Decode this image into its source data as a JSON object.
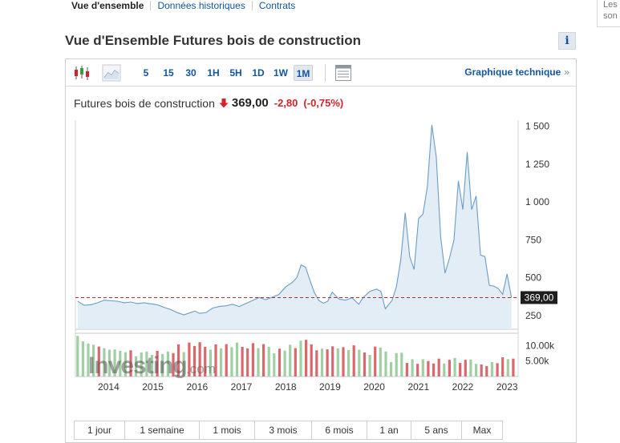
{
  "nav": {
    "tabs": [
      "Vue d'ensemble",
      "Données historiques",
      "Contrats"
    ]
  },
  "side_panel": {
    "line1": "Les",
    "line2": "son"
  },
  "page": {
    "title": "Vue d'Ensemble Futures bois de construction",
    "info_label": "i"
  },
  "toolbar": {
    "timeframes": [
      "5",
      "15",
      "30",
      "1H",
      "5H",
      "1D",
      "1W",
      "1M"
    ],
    "active_timeframe": "1M",
    "technical_chart_label": "Graphique technique",
    "technical_chart_arrow": "»"
  },
  "quote": {
    "name": "Futures bois de construction",
    "price": "369,00",
    "change": "-2,80",
    "change_pct": "(-0,75%)"
  },
  "periods": [
    "1 jour",
    "1 semaine",
    "1 mois",
    "3 mois",
    "6 mois",
    "1 an",
    "5 ans",
    "Max"
  ],
  "watermark": {
    "brand": "Investing",
    "suffix": ".com"
  },
  "colors": {
    "link": "#1256a0",
    "down": "#d4232c",
    "line": "#6a9cc6",
    "area": "#deeaf4",
    "vol_up": "#9fd0a3",
    "vol_down": "#d9676b"
  },
  "chart_data": {
    "type": "area",
    "title": "Futures bois de construction",
    "x_ticks": [
      "2014",
      "2015",
      "2016",
      "2017",
      "2018",
      "2019",
      "2020",
      "2021",
      "2022",
      "2023"
    ],
    "y_ticks": [
      "1 500",
      "1 250",
      "1 000",
      "750",
      "500",
      "250"
    ],
    "y_tick_values": [
      1500,
      1250,
      1000,
      750,
      500,
      250
    ],
    "ylim": [
      160,
      1530
    ],
    "x_range": [
      2013.25,
      2023.25
    ],
    "current_value": 369,
    "current_label": "369,00",
    "price_series": [
      [
        2013.3,
        345
      ],
      [
        2013.45,
        318
      ],
      [
        2013.6,
        322
      ],
      [
        2013.75,
        335
      ],
      [
        2013.9,
        352
      ],
      [
        2014.05,
        348
      ],
      [
        2014.2,
        345
      ],
      [
        2014.35,
        335
      ],
      [
        2014.5,
        340
      ],
      [
        2014.65,
        330
      ],
      [
        2014.8,
        335
      ],
      [
        2014.95,
        328
      ],
      [
        2015.1,
        322
      ],
      [
        2015.25,
        305
      ],
      [
        2015.4,
        290
      ],
      [
        2015.55,
        270
      ],
      [
        2015.7,
        255
      ],
      [
        2015.85,
        270
      ],
      [
        2015.95,
        280
      ],
      [
        2016.05,
        265
      ],
      [
        2016.2,
        270
      ],
      [
        2016.35,
        300
      ],
      [
        2016.5,
        310
      ],
      [
        2016.65,
        315
      ],
      [
        2016.8,
        325
      ],
      [
        2016.95,
        310
      ],
      [
        2017.1,
        330
      ],
      [
        2017.25,
        350
      ],
      [
        2017.4,
        370
      ],
      [
        2017.55,
        355
      ],
      [
        2017.7,
        372
      ],
      [
        2017.85,
        390
      ],
      [
        2018.0,
        440
      ],
      [
        2018.15,
        470
      ],
      [
        2018.25,
        500
      ],
      [
        2018.35,
        585
      ],
      [
        2018.45,
        570
      ],
      [
        2018.55,
        480
      ],
      [
        2018.65,
        400
      ],
      [
        2018.75,
        350
      ],
      [
        2018.85,
        332
      ],
      [
        2018.95,
        345
      ],
      [
        2019.05,
        405
      ],
      [
        2019.2,
        360
      ],
      [
        2019.35,
        352
      ],
      [
        2019.5,
        368
      ],
      [
        2019.65,
        325
      ],
      [
        2019.75,
        370
      ],
      [
        2019.9,
        410
      ],
      [
        2020.05,
        425
      ],
      [
        2020.15,
        410
      ],
      [
        2020.25,
        295
      ],
      [
        2020.4,
        350
      ],
      [
        2020.5,
        440
      ],
      [
        2020.6,
        620
      ],
      [
        2020.7,
        930
      ],
      [
        2020.8,
        640
      ],
      [
        2020.9,
        555
      ],
      [
        2021.0,
        890
      ],
      [
        2021.1,
        920
      ],
      [
        2021.2,
        1100
      ],
      [
        2021.3,
        1510
      ],
      [
        2021.4,
        1300
      ],
      [
        2021.5,
        770
      ],
      [
        2021.6,
        530
      ],
      [
        2021.7,
        630
      ],
      [
        2021.8,
        750
      ],
      [
        2021.9,
        1140
      ],
      [
        2022.0,
        950
      ],
      [
        2022.1,
        1330
      ],
      [
        2022.2,
        950
      ],
      [
        2022.3,
        1040
      ],
      [
        2022.4,
        650
      ],
      [
        2022.5,
        640
      ],
      [
        2022.6,
        450
      ],
      [
        2022.7,
        445
      ],
      [
        2022.8,
        430
      ],
      [
        2022.9,
        390
      ],
      [
        2023.0,
        525
      ],
      [
        2023.1,
        369
      ]
    ],
    "volume_unit_ticks": [
      "10.00k",
      "5.00k"
    ],
    "volume_tick_values": [
      10000,
      5000
    ],
    "volume_max": 13500,
    "volume_bars": [
      [
        2013.3,
        13200,
        "up"
      ],
      [
        2013.42,
        11400,
        "up"
      ],
      [
        2013.54,
        10700,
        "up"
      ],
      [
        2013.66,
        10300,
        "up"
      ],
      [
        2013.78,
        9700,
        "down"
      ],
      [
        2013.9,
        9200,
        "up"
      ],
      [
        2014.02,
        8700,
        "up"
      ],
      [
        2014.14,
        8800,
        "up"
      ],
      [
        2014.26,
        8300,
        "up"
      ],
      [
        2014.38,
        7900,
        "up"
      ],
      [
        2014.5,
        8500,
        "down"
      ],
      [
        2014.62,
        6500,
        "up"
      ],
      [
        2014.74,
        7800,
        "up"
      ],
      [
        2014.86,
        8100,
        "up"
      ],
      [
        2014.98,
        7000,
        "up"
      ],
      [
        2015.1,
        8300,
        "down"
      ],
      [
        2015.22,
        7300,
        "up"
      ],
      [
        2015.34,
        8100,
        "up"
      ],
      [
        2015.46,
        7600,
        "down"
      ],
      [
        2015.58,
        10400,
        "down"
      ],
      [
        2015.7,
        7900,
        "up"
      ],
      [
        2015.82,
        11000,
        "down"
      ],
      [
        2015.94,
        9900,
        "down"
      ],
      [
        2016.06,
        11100,
        "down"
      ],
      [
        2016.18,
        9600,
        "down"
      ],
      [
        2016.3,
        8700,
        "up"
      ],
      [
        2016.42,
        10400,
        "down"
      ],
      [
        2016.54,
        9100,
        "up"
      ],
      [
        2016.66,
        10500,
        "down"
      ],
      [
        2016.78,
        9500,
        "up"
      ],
      [
        2016.9,
        11000,
        "up"
      ],
      [
        2017.02,
        9600,
        "down"
      ],
      [
        2017.14,
        9100,
        "down"
      ],
      [
        2017.26,
        10800,
        "down"
      ],
      [
        2017.38,
        9200,
        "up"
      ],
      [
        2017.5,
        10500,
        "down"
      ],
      [
        2017.62,
        9600,
        "up"
      ],
      [
        2017.74,
        7500,
        "up"
      ],
      [
        2017.86,
        9000,
        "down"
      ],
      [
        2017.98,
        8400,
        "up"
      ],
      [
        2018.1,
        10300,
        "up"
      ],
      [
        2018.22,
        9200,
        "down"
      ],
      [
        2018.34,
        11600,
        "up"
      ],
      [
        2018.46,
        11900,
        "down"
      ],
      [
        2018.58,
        10400,
        "down"
      ],
      [
        2018.7,
        8500,
        "down"
      ],
      [
        2018.82,
        9000,
        "up"
      ],
      [
        2018.94,
        8800,
        "down"
      ],
      [
        2019.06,
        9800,
        "down"
      ],
      [
        2019.18,
        9100,
        "up"
      ],
      [
        2019.3,
        9500,
        "down"
      ],
      [
        2019.42,
        8600,
        "up"
      ],
      [
        2019.54,
        10100,
        "down"
      ],
      [
        2019.66,
        8700,
        "up"
      ],
      [
        2019.78,
        7800,
        "down"
      ],
      [
        2019.9,
        7000,
        "up"
      ],
      [
        2020.02,
        9700,
        "down"
      ],
      [
        2020.14,
        9400,
        "up"
      ],
      [
        2020.26,
        8100,
        "up"
      ],
      [
        2020.38,
        4700,
        "up"
      ],
      [
        2020.5,
        7600,
        "up"
      ],
      [
        2020.62,
        7700,
        "up"
      ],
      [
        2020.74,
        4400,
        "down"
      ],
      [
        2020.86,
        5600,
        "up"
      ],
      [
        2020.98,
        4100,
        "down"
      ],
      [
        2021.1,
        5600,
        "up"
      ],
      [
        2021.22,
        5000,
        "down"
      ],
      [
        2021.34,
        4200,
        "down"
      ],
      [
        2021.46,
        5800,
        "down"
      ],
      [
        2021.58,
        4200,
        "up"
      ],
      [
        2021.7,
        5400,
        "down"
      ],
      [
        2021.82,
        6000,
        "up"
      ],
      [
        2021.94,
        4400,
        "down"
      ],
      [
        2022.06,
        5400,
        "down"
      ],
      [
        2022.18,
        5500,
        "up"
      ],
      [
        2022.3,
        4100,
        "up"
      ],
      [
        2022.42,
        3900,
        "down"
      ],
      [
        2022.54,
        3400,
        "down"
      ],
      [
        2022.66,
        4700,
        "up"
      ],
      [
        2022.78,
        4300,
        "down"
      ],
      [
        2022.9,
        6200,
        "down"
      ],
      [
        2023.02,
        5600,
        "up"
      ],
      [
        2023.14,
        5800,
        "down"
      ]
    ]
  }
}
